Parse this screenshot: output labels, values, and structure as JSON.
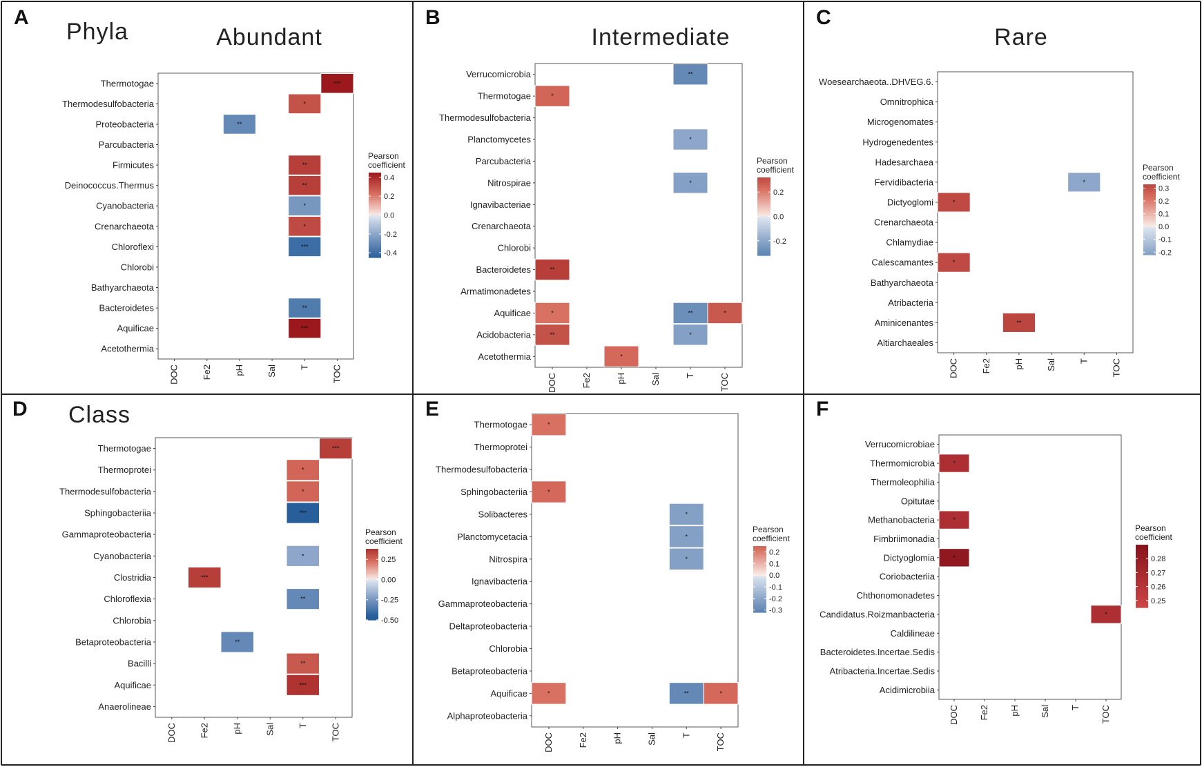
{
  "chart_data": [
    {
      "id": "A",
      "type": "heatmap",
      "panel_label": "A",
      "level_title": "Phyla",
      "title": "Abundant",
      "x_categories": [
        "DOC",
        "Fe2",
        "pH",
        "Sal",
        "T",
        "TOC"
      ],
      "y_categories": [
        "Thermotogae",
        "Thermodesulfobacteria",
        "Proteobacteria",
        "Parcubacteria",
        "Firmicutes",
        "Deinococcus.Thermus",
        "Cyanobacteria",
        "Crenarchaeota",
        "Chloroflexi",
        "Chlorobi",
        "Bathyarchaeota",
        "Bacteroidetes",
        "Aquificae",
        "Acetothermia"
      ],
      "cells": [
        {
          "x": "TOC",
          "y": "Thermotogae",
          "value": 0.45,
          "sig": "***"
        },
        {
          "x": "T",
          "y": "Thermodesulfobacteria",
          "value": 0.3,
          "sig": "*"
        },
        {
          "x": "pH",
          "y": "Proteobacteria",
          "value": -0.3,
          "sig": "**"
        },
        {
          "x": "T",
          "y": "Firmicutes",
          "value": 0.35,
          "sig": "**"
        },
        {
          "x": "T",
          "y": "Deinococcus.Thermus",
          "value": 0.35,
          "sig": "**"
        },
        {
          "x": "T",
          "y": "Cyanobacteria",
          "value": -0.25,
          "sig": "*"
        },
        {
          "x": "T",
          "y": "Crenarchaeota",
          "value": 0.32,
          "sig": "*"
        },
        {
          "x": "T",
          "y": "Chloroflexi",
          "value": -0.4,
          "sig": "***"
        },
        {
          "x": "T",
          "y": "Bacteroidetes",
          "value": -0.35,
          "sig": "**"
        },
        {
          "x": "T",
          "y": "Aquificae",
          "value": 0.48,
          "sig": "***"
        }
      ],
      "legend": {
        "title": [
          "Pearson",
          "coefficient"
        ],
        "min": -0.45,
        "max": 0.45,
        "ticks": [
          0.4,
          0.2,
          0.0,
          -0.2,
          -0.4
        ],
        "tick_labels": [
          "0.4",
          "0.2",
          "0.0",
          "-0.2",
          "-0.4"
        ]
      }
    },
    {
      "id": "B",
      "type": "heatmap",
      "panel_label": "B",
      "title": "Intermediate",
      "x_categories": [
        "DOC",
        "Fe2",
        "pH",
        "Sal",
        "T",
        "TOC"
      ],
      "y_categories": [
        "Verrucomicrobia",
        "Thermotogae",
        "Thermodesulfobacteria",
        "Planctomycetes",
        "Parcubacteria",
        "Nitrospirae",
        "Ignavibacteriae",
        "Crenarchaeota",
        "Chlorobi",
        "Bacteroidetes",
        "Armatimonadetes",
        "Aquificae",
        "Acidobacteria",
        "Acetothermia"
      ],
      "cells": [
        {
          "x": "T",
          "y": "Verrucomicrobia",
          "value": -0.3,
          "sig": "**"
        },
        {
          "x": "DOC",
          "y": "Thermotogae",
          "value": 0.25,
          "sig": "*"
        },
        {
          "x": "T",
          "y": "Planctomycetes",
          "value": -0.2,
          "sig": "*"
        },
        {
          "x": "T",
          "y": "Nitrospirae",
          "value": -0.22,
          "sig": "*"
        },
        {
          "x": "DOC",
          "y": "Bacteroidetes",
          "value": 0.35,
          "sig": "**"
        },
        {
          "x": "DOC",
          "y": "Aquificae",
          "value": 0.22,
          "sig": "*"
        },
        {
          "x": "T",
          "y": "Aquificae",
          "value": -0.28,
          "sig": "**"
        },
        {
          "x": "TOC",
          "y": "Aquificae",
          "value": 0.28,
          "sig": "*"
        },
        {
          "x": "DOC",
          "y": "Acidobacteria",
          "value": 0.3,
          "sig": "**"
        },
        {
          "x": "T",
          "y": "Acidobacteria",
          "value": -0.22,
          "sig": "*"
        },
        {
          "x": "pH",
          "y": "Acetothermia",
          "value": 0.24,
          "sig": "*"
        }
      ],
      "legend": {
        "title": [
          "Pearson",
          "coefficient"
        ],
        "min": -0.32,
        "max": 0.32,
        "ticks": [
          0.2,
          0.0,
          -0.2
        ],
        "tick_labels": [
          "0.2",
          "0.0",
          "-0.2"
        ]
      }
    },
    {
      "id": "C",
      "type": "heatmap",
      "panel_label": "C",
      "title": "Rare",
      "x_categories": [
        "DOC",
        "Fe2",
        "pH",
        "Sal",
        "T",
        "TOC"
      ],
      "y_categories": [
        "Woesearchaeota..DHVEG.6.",
        "Omnitrophica",
        "Microgenomates",
        "Hydrogenedentes",
        "Hadesarchaea",
        "Fervidibacteria",
        "Dictyoglomi",
        "Crenarchaeota",
        "Chlamydiae",
        "Calescamantes",
        "Bathyarchaeota",
        "Atribacteria",
        "Aminicenantes",
        "Altiarchaeales"
      ],
      "cells": [
        {
          "x": "T",
          "y": "Fervidibacteria",
          "value": -0.2,
          "sig": "*"
        },
        {
          "x": "DOC",
          "y": "Dictyoglomi",
          "value": 0.32,
          "sig": "*"
        },
        {
          "x": "DOC",
          "y": "Calescamantes",
          "value": 0.32,
          "sig": "*"
        },
        {
          "x": "pH",
          "y": "Aminicenantes",
          "value": 0.33,
          "sig": "**"
        }
      ],
      "legend": {
        "title": [
          "Pearson",
          "coefficient"
        ],
        "min": -0.22,
        "max": 0.33,
        "ticks": [
          0.3,
          0.2,
          0.1,
          0.0,
          -0.1,
          -0.2
        ],
        "tick_labels": [
          "0.3",
          "0.2",
          "0.1",
          "0.0",
          "-0.1",
          "-0.2"
        ]
      }
    },
    {
      "id": "D",
      "type": "heatmap",
      "panel_label": "D",
      "level_title": "Class",
      "x_categories": [
        "DOC",
        "Fe2",
        "pH",
        "Sal",
        "T",
        "TOC"
      ],
      "y_categories": [
        "Thermotogae",
        "Thermoprotei",
        "Thermodesulfobacteria",
        "Sphingobacteriia",
        "Gammaproteobacteria",
        "Cyanobacteria",
        "Clostridia",
        "Chloroflexia",
        "Chlorobia",
        "Betaproteobacteria",
        "Bacilli",
        "Aquificae",
        "Anaerolineae"
      ],
      "cells": [
        {
          "x": "TOC",
          "y": "Thermotogae",
          "value": 0.35,
          "sig": "***"
        },
        {
          "x": "T",
          "y": "Thermoprotei",
          "value": 0.25,
          "sig": "*"
        },
        {
          "x": "T",
          "y": "Thermodesulfobacteria",
          "value": 0.25,
          "sig": "*"
        },
        {
          "x": "T",
          "y": "Sphingobacteriia",
          "value": -0.45,
          "sig": "***"
        },
        {
          "x": "T",
          "y": "Cyanobacteria",
          "value": -0.2,
          "sig": "*"
        },
        {
          "x": "Fe2",
          "y": "Clostridia",
          "value": 0.35,
          "sig": "***"
        },
        {
          "x": "T",
          "y": "Chloroflexia",
          "value": -0.3,
          "sig": "**"
        },
        {
          "x": "pH",
          "y": "Betaproteobacteria",
          "value": -0.3,
          "sig": "**"
        },
        {
          "x": "T",
          "y": "Bacilli",
          "value": 0.28,
          "sig": "**"
        },
        {
          "x": "T",
          "y": "Aquificae",
          "value": 0.38,
          "sig": "***"
        }
      ],
      "legend": {
        "title": [
          "Pearson",
          "coefficient"
        ],
        "min": -0.5,
        "max": 0.38,
        "ticks": [
          0.25,
          0.0,
          -0.25,
          -0.5
        ],
        "tick_labels": [
          "0.25",
          "0.00",
          "-0.25",
          "-0.50"
        ]
      }
    },
    {
      "id": "E",
      "type": "heatmap",
      "panel_label": "E",
      "x_categories": [
        "DOC",
        "Fe2",
        "pH",
        "Sal",
        "T",
        "TOC"
      ],
      "y_categories": [
        "Thermotogae",
        "Thermoprotei",
        "Thermodesulfobacteria",
        "Sphingobacteriia",
        "Solibacteres",
        "Planctomycetacia",
        "Nitrospira",
        "Ignavibacteria",
        "Gammaproteobacteria",
        "Deltaproteobacteria",
        "Chlorobia",
        "Betaproteobacteria",
        "Aquificae",
        "Alphaproteobacteria"
      ],
      "cells": [
        {
          "x": "DOC",
          "y": "Thermotogae",
          "value": 0.22,
          "sig": "*"
        },
        {
          "x": "DOC",
          "y": "Sphingobacteriia",
          "value": 0.24,
          "sig": "*"
        },
        {
          "x": "T",
          "y": "Solibacteres",
          "value": -0.22,
          "sig": "*"
        },
        {
          "x": "T",
          "y": "Planctomycetacia",
          "value": -0.22,
          "sig": "*"
        },
        {
          "x": "T",
          "y": "Nitrospira",
          "value": -0.22,
          "sig": "*"
        },
        {
          "x": "DOC",
          "y": "Aquificae",
          "value": 0.22,
          "sig": "*"
        },
        {
          "x": "T",
          "y": "Aquificae",
          "value": -0.3,
          "sig": "**"
        },
        {
          "x": "TOC",
          "y": "Aquificae",
          "value": 0.24,
          "sig": "*"
        }
      ],
      "legend": {
        "title": [
          "Pearson",
          "coefficient"
        ],
        "min": -0.32,
        "max": 0.25,
        "ticks": [
          0.2,
          0.1,
          0.0,
          -0.1,
          -0.2,
          -0.3
        ],
        "tick_labels": [
          "0.2",
          "0.1",
          "0.0",
          "-0.1",
          "-0.2",
          "-0.3"
        ]
      }
    },
    {
      "id": "F",
      "type": "heatmap",
      "panel_label": "F",
      "x_categories": [
        "DOC",
        "Fe2",
        "pH",
        "Sal",
        "T",
        "TOC"
      ],
      "y_categories": [
        "Verrucomicrobiae",
        "Thermomicrobia",
        "Thermoleophilia",
        "Opitutae",
        "Methanobacteria",
        "Fimbriimonadia",
        "Dictyoglomia",
        "Coriobacteriia",
        "Chthonomonadetes",
        "Candidatus.Roizmanbacteria",
        "Caldilineae",
        "Bacteroidetes.Incertae.Sedis",
        "Atribacteria.Incertae.Sedis",
        "Acidimicrobiia"
      ],
      "cells": [
        {
          "x": "DOC",
          "y": "Thermomicrobia",
          "value": 0.265,
          "sig": "*"
        },
        {
          "x": "DOC",
          "y": "Methanobacteria",
          "value": 0.265,
          "sig": "*"
        },
        {
          "x": "DOC",
          "y": "Dictyoglomia",
          "value": 0.285,
          "sig": "*"
        },
        {
          "x": "TOC",
          "y": "Candidatus.Roizmanbacteria",
          "value": 0.265,
          "sig": "*"
        }
      ],
      "legend": {
        "title": [
          "Pearson",
          "coefficient"
        ],
        "min": 0.245,
        "max": 0.29,
        "ticks": [
          0.28,
          0.27,
          0.26,
          0.25
        ],
        "tick_labels": [
          "0.28",
          "0.27",
          "0.26",
          "0.25"
        ]
      }
    }
  ]
}
